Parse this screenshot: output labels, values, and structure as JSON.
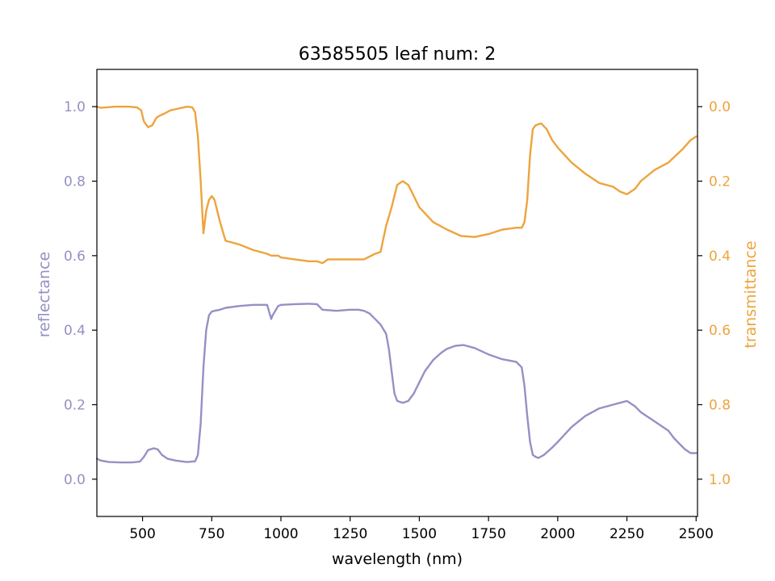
{
  "chart_data": {
    "type": "line",
    "title": "63585505 leaf num: 2",
    "xlabel": "wavelength (nm)",
    "ylabel_left": "reflectance",
    "ylabel_right": "transmittance",
    "xlim": [
      335,
      2505
    ],
    "ylim_left": [
      -0.1,
      1.1
    ],
    "ylim_right": [
      1.1,
      -0.1
    ],
    "right_axis_inverted": true,
    "grid": false,
    "legend": "none",
    "x_ticks": [
      500,
      750,
      1000,
      1250,
      1500,
      1750,
      2000,
      2250,
      2500
    ],
    "x_tick_labels": [
      "500",
      "750",
      "1000",
      "1250",
      "1500",
      "1750",
      "2000",
      "2250",
      "2500"
    ],
    "y_left_ticks": [
      0.0,
      0.2,
      0.4,
      0.6,
      0.8,
      1.0
    ],
    "y_left_tick_labels": [
      "0.0",
      "0.2",
      "0.4",
      "0.6",
      "0.8",
      "1.0"
    ],
    "y_right_ticks": [
      0.0,
      0.2,
      0.4,
      0.6,
      0.8,
      1.0
    ],
    "y_right_tick_labels": [
      "0.0",
      "0.2",
      "0.4",
      "0.6",
      "0.8",
      "1.0"
    ],
    "colors": {
      "reflectance": "#9491c4",
      "transmittance": "#eda43d"
    },
    "series": [
      {
        "axis": "left",
        "x": [
          335,
          350,
          380,
          420,
          460,
          490,
          505,
          520,
          540,
          555,
          570,
          590,
          620,
          660,
          690,
          700,
          710,
          720,
          730,
          740,
          750,
          760,
          780,
          800,
          850,
          900,
          950,
          965,
          970,
          990,
          1000,
          1050,
          1100,
          1130,
          1150,
          1200,
          1250,
          1280,
          1300,
          1320,
          1340,
          1360,
          1380,
          1390,
          1400,
          1410,
          1420,
          1440,
          1460,
          1480,
          1500,
          1520,
          1550,
          1580,
          1600,
          1630,
          1660,
          1700,
          1750,
          1800,
          1850,
          1870,
          1880,
          1890,
          1900,
          1910,
          1920,
          1930,
          1950,
          1980,
          2000,
          2050,
          2100,
          2150,
          2200,
          2225,
          2250,
          2280,
          2300,
          2350,
          2400,
          2420,
          2440,
          2460,
          2480,
          2500
        ],
        "y": [
          0.055,
          0.05,
          0.046,
          0.045,
          0.045,
          0.047,
          0.06,
          0.078,
          0.083,
          0.08,
          0.065,
          0.055,
          0.05,
          0.046,
          0.048,
          0.065,
          0.15,
          0.3,
          0.4,
          0.44,
          0.45,
          0.452,
          0.455,
          0.46,
          0.465,
          0.468,
          0.468,
          0.43,
          0.44,
          0.465,
          0.468,
          0.47,
          0.471,
          0.47,
          0.455,
          0.452,
          0.455,
          0.455,
          0.452,
          0.445,
          0.43,
          0.415,
          0.39,
          0.35,
          0.29,
          0.23,
          0.21,
          0.205,
          0.21,
          0.23,
          0.26,
          0.29,
          0.32,
          0.34,
          0.35,
          0.358,
          0.36,
          0.352,
          0.335,
          0.322,
          0.315,
          0.3,
          0.25,
          0.17,
          0.1,
          0.065,
          0.06,
          0.057,
          0.065,
          0.085,
          0.1,
          0.14,
          0.17,
          0.19,
          0.2,
          0.205,
          0.21,
          0.195,
          0.18,
          0.155,
          0.13,
          0.11,
          0.095,
          0.08,
          0.07,
          0.07
        ]
      },
      {
        "axis": "right",
        "x": [
          335,
          350,
          400,
          450,
          480,
          495,
          505,
          520,
          535,
          550,
          560,
          575,
          600,
          630,
          660,
          680,
          690,
          700,
          710,
          720,
          730,
          740,
          750,
          760,
          780,
          800,
          850,
          900,
          950,
          965,
          975,
          990,
          1000,
          1050,
          1100,
          1130,
          1150,
          1170,
          1200,
          1250,
          1300,
          1340,
          1360,
          1380,
          1400,
          1420,
          1440,
          1460,
          1480,
          1500,
          1550,
          1600,
          1650,
          1700,
          1750,
          1800,
          1850,
          1870,
          1880,
          1890,
          1900,
          1910,
          1920,
          1940,
          1960,
          1980,
          2000,
          2050,
          2100,
          2150,
          2200,
          2225,
          2250,
          2280,
          2300,
          2350,
          2400,
          2450,
          2480,
          2500
        ],
        "y": [
          0.0,
          0.003,
          0.0,
          0.0,
          0.002,
          0.01,
          0.04,
          0.055,
          0.05,
          0.03,
          0.025,
          0.02,
          0.01,
          0.005,
          0.0,
          0.002,
          0.015,
          0.08,
          0.2,
          0.34,
          0.28,
          0.25,
          0.24,
          0.25,
          0.31,
          0.36,
          0.37,
          0.385,
          0.395,
          0.4,
          0.4,
          0.4,
          0.405,
          0.41,
          0.415,
          0.415,
          0.42,
          0.41,
          0.41,
          0.41,
          0.41,
          0.395,
          0.39,
          0.32,
          0.27,
          0.21,
          0.2,
          0.21,
          0.24,
          0.27,
          0.31,
          0.33,
          0.347,
          0.35,
          0.342,
          0.33,
          0.325,
          0.325,
          0.31,
          0.25,
          0.13,
          0.06,
          0.05,
          0.045,
          0.06,
          0.09,
          0.11,
          0.15,
          0.18,
          0.205,
          0.215,
          0.228,
          0.235,
          0.22,
          0.2,
          0.17,
          0.15,
          0.115,
          0.09,
          0.08
        ]
      }
    ]
  }
}
